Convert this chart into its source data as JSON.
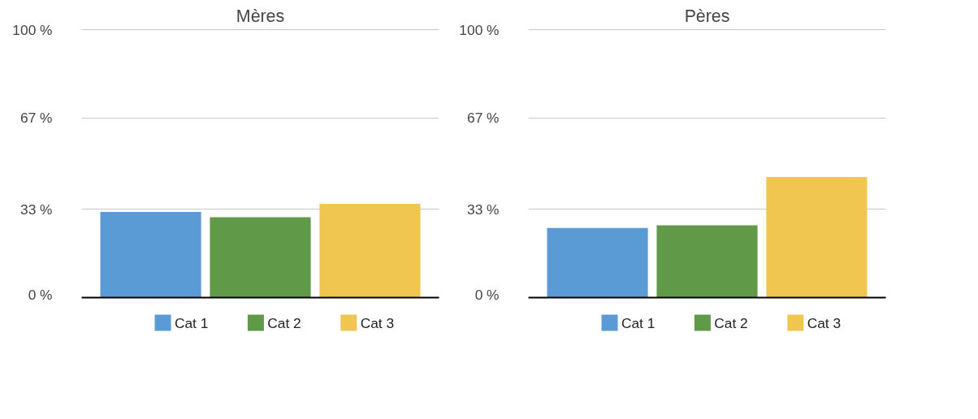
{
  "chart_data": [
    {
      "type": "bar",
      "title": "Mères",
      "categories": [
        null
      ],
      "series": [
        {
          "name": "Cat 1",
          "color": "#5b9bd5",
          "values": [
            32
          ]
        },
        {
          "name": "Cat 2",
          "color": "#609947",
          "values": [
            30
          ]
        },
        {
          "name": "Cat 3",
          "color": "#f0c651",
          "values": [
            35
          ]
        }
      ],
      "ylim": [
        0,
        100
      ],
      "yticks": [
        {
          "value": 0,
          "label": "0 %"
        },
        {
          "value": 33,
          "label": "33 %"
        },
        {
          "value": 67,
          "label": "67 %"
        },
        {
          "value": 100,
          "label": "100 %"
        }
      ],
      "grid": "y",
      "legend": "bottom"
    },
    {
      "type": "bar",
      "title": "Pères",
      "categories": [
        null
      ],
      "series": [
        {
          "name": "Cat 1",
          "color": "#5b9bd5",
          "values": [
            26
          ]
        },
        {
          "name": "Cat 2",
          "color": "#609947",
          "values": [
            27
          ]
        },
        {
          "name": "Cat 3",
          "color": "#f0c651",
          "values": [
            45
          ]
        }
      ],
      "ylim": [
        0,
        100
      ],
      "yticks": [
        {
          "value": 0,
          "label": "0 %"
        },
        {
          "value": 33,
          "label": "33 %"
        },
        {
          "value": 67,
          "label": "67 %"
        },
        {
          "value": 100,
          "label": "100 %"
        }
      ],
      "grid": "y",
      "legend": "bottom"
    }
  ]
}
